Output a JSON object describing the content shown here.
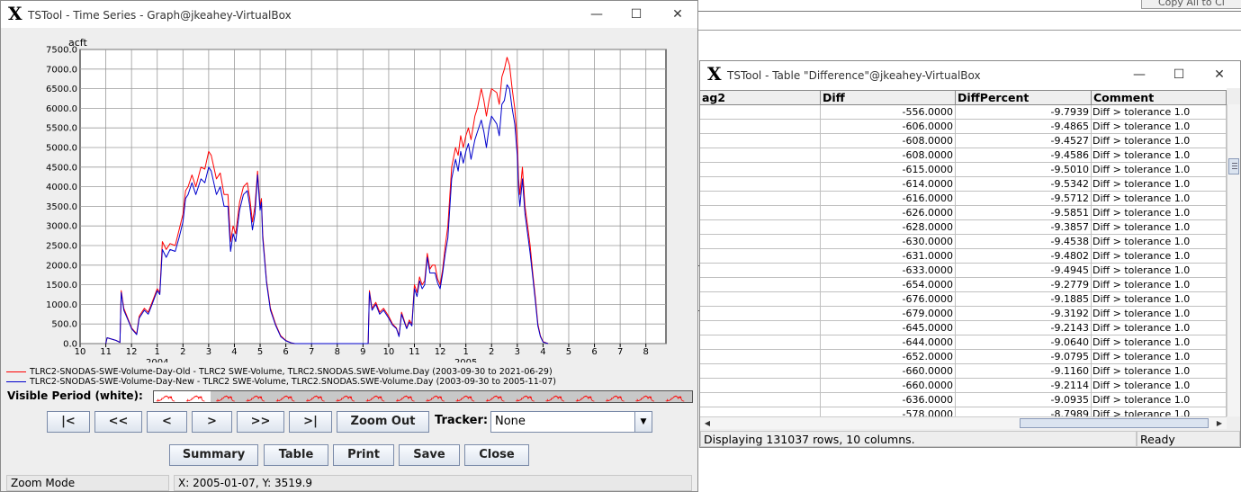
{
  "background": {
    "top_button_label": "Copy All to Cl"
  },
  "graph_window": {
    "title": "TSTool - Time Series - Graph@jkeahey-VirtualBox",
    "minimize_glyph": "—",
    "maximize_glyph": "☐",
    "close_glyph": "✕",
    "legend": [
      {
        "text": "TLRC2-SNODAS-SWE-Volume-Day-Old - TLRC2 SWE-Volume, TLRC2.SNODAS.SWE-Volume.Day (2003-09-30 to 2021-06-29)",
        "color": "#ff0000"
      },
      {
        "text": "TLRC2-SNODAS-SWE-Volume-Day-New - TLRC2 SWE-Volume, TLRC2.SNODAS.SWE-Volume.Day (2003-09-30 to 2005-11-07)",
        "color": "#0000cc"
      }
    ],
    "visible_period_label": "Visible Period (white):",
    "nav_buttons": [
      "|<",
      "<<",
      "<",
      ">",
      ">>",
      ">|"
    ],
    "zoom_out_label": "Zoom Out",
    "tracker_label": "Tracker:",
    "tracker_value": "None",
    "bottom_buttons": [
      "Summary",
      "Table",
      "Print",
      "Save",
      "Close"
    ],
    "status_mode": "Zoom Mode",
    "status_coords": "X:  2005-01-07,  Y:  3519.9"
  },
  "chart_data": {
    "type": "line",
    "ylabel": "acft",
    "ylim": [
      0,
      7500
    ],
    "y_ticks": [
      "0.0",
      "500.0",
      "1000.0",
      "1500.0",
      "2000.0",
      "2500.0",
      "3000.0",
      "3500.0",
      "4000.0",
      "4500.0",
      "5000.0",
      "5500.0",
      "6000.0",
      "6500.0",
      "7000.0",
      "7500.0"
    ],
    "x_tick_labels": [
      "10",
      "11",
      "12",
      "1",
      "2",
      "3",
      "4",
      "5",
      "6",
      "7",
      "8",
      "9",
      "10",
      "11",
      "12",
      "1",
      "2",
      "3",
      "4",
      "5",
      "6",
      "7",
      "8"
    ],
    "x_year_labels": [
      {
        "label": "2004",
        "at_month_index": 3
      },
      {
        "label": "2005",
        "at_month_index": 15
      }
    ],
    "x_unit": "month index from 2003-10 (0 = Oct 2003)",
    "grid": true,
    "series": [
      {
        "name": "TLRC2-SNODAS-SWE-Volume-Day-Old",
        "color": "#ff0000",
        "points": [
          [
            1.0,
            0
          ],
          [
            1.05,
            150
          ],
          [
            1.4,
            80
          ],
          [
            1.55,
            30
          ],
          [
            1.6,
            1350
          ],
          [
            1.7,
            900
          ],
          [
            1.85,
            650
          ],
          [
            2.0,
            400
          ],
          [
            2.2,
            250
          ],
          [
            2.3,
            700
          ],
          [
            2.5,
            900
          ],
          [
            2.65,
            800
          ],
          [
            2.8,
            1050
          ],
          [
            3.0,
            1400
          ],
          [
            3.1,
            1300
          ],
          [
            3.2,
            2600
          ],
          [
            3.35,
            2400
          ],
          [
            3.5,
            2550
          ],
          [
            3.7,
            2500
          ],
          [
            3.85,
            2900
          ],
          [
            4.0,
            3300
          ],
          [
            4.1,
            3900
          ],
          [
            4.2,
            4000
          ],
          [
            4.35,
            4300
          ],
          [
            4.5,
            4000
          ],
          [
            4.7,
            4500
          ],
          [
            4.85,
            4450
          ],
          [
            5.0,
            4900
          ],
          [
            5.1,
            4800
          ],
          [
            5.3,
            4200
          ],
          [
            5.45,
            4350
          ],
          [
            5.6,
            3800
          ],
          [
            5.75,
            3800
          ],
          [
            5.85,
            2600
          ],
          [
            5.95,
            3000
          ],
          [
            6.05,
            2800
          ],
          [
            6.2,
            3600
          ],
          [
            6.35,
            4000
          ],
          [
            6.5,
            4100
          ],
          [
            6.6,
            3700
          ],
          [
            6.7,
            3100
          ],
          [
            6.8,
            3500
          ],
          [
            6.9,
            4400
          ],
          [
            7.0,
            3500
          ],
          [
            7.05,
            3700
          ],
          [
            7.1,
            2800
          ],
          [
            7.25,
            1600
          ],
          [
            7.4,
            900
          ],
          [
            7.6,
            500
          ],
          [
            7.8,
            200
          ],
          [
            8.0,
            80
          ],
          [
            8.2,
            20
          ],
          [
            8.35,
            0
          ],
          [
            11.2,
            0
          ],
          [
            11.25,
            1350
          ],
          [
            11.35,
            900
          ],
          [
            11.5,
            1050
          ],
          [
            11.65,
            800
          ],
          [
            11.8,
            900
          ],
          [
            12.0,
            700
          ],
          [
            12.15,
            500
          ],
          [
            12.3,
            400
          ],
          [
            12.4,
            200
          ],
          [
            12.5,
            800
          ],
          [
            12.7,
            400
          ],
          [
            12.8,
            600
          ],
          [
            12.9,
            500
          ],
          [
            13.0,
            1500
          ],
          [
            13.1,
            1300
          ],
          [
            13.2,
            1700
          ],
          [
            13.3,
            1500
          ],
          [
            13.4,
            1600
          ],
          [
            13.5,
            2300
          ],
          [
            13.6,
            1900
          ],
          [
            13.7,
            2000
          ],
          [
            13.8,
            2000
          ],
          [
            13.9,
            1650
          ],
          [
            14.0,
            1500
          ],
          [
            14.1,
            1900
          ],
          [
            14.2,
            2500
          ],
          [
            14.3,
            3000
          ],
          [
            14.45,
            4500
          ],
          [
            14.6,
            5000
          ],
          [
            14.7,
            4800
          ],
          [
            14.8,
            5300
          ],
          [
            14.9,
            5000
          ],
          [
            15.0,
            5300
          ],
          [
            15.1,
            5500
          ],
          [
            15.2,
            5200
          ],
          [
            15.35,
            5800
          ],
          [
            15.45,
            6000
          ],
          [
            15.6,
            6500
          ],
          [
            15.7,
            6200
          ],
          [
            15.8,
            5800
          ],
          [
            15.9,
            6200
          ],
          [
            16.0,
            6500
          ],
          [
            16.2,
            6400
          ],
          [
            16.3,
            6100
          ],
          [
            16.4,
            6800
          ],
          [
            16.5,
            7000
          ],
          [
            16.6,
            7300
          ],
          [
            16.7,
            7100
          ],
          [
            16.8,
            6500
          ],
          [
            16.9,
            6000
          ],
          [
            17.0,
            5200
          ],
          [
            17.05,
            4200
          ],
          [
            17.1,
            3800
          ],
          [
            17.2,
            4500
          ],
          [
            17.3,
            3500
          ],
          [
            17.4,
            3000
          ],
          [
            17.5,
            2500
          ],
          [
            17.6,
            1800
          ],
          [
            17.7,
            1200
          ],
          [
            17.8,
            500
          ],
          [
            17.9,
            200
          ],
          [
            18.0,
            50
          ],
          [
            18.2,
            0
          ]
        ]
      },
      {
        "name": "TLRC2-SNODAS-SWE-Volume-Day-New",
        "color": "#0000cc",
        "points": [
          [
            1.0,
            0
          ],
          [
            1.05,
            150
          ],
          [
            1.4,
            80
          ],
          [
            1.55,
            30
          ],
          [
            1.6,
            1300
          ],
          [
            1.7,
            850
          ],
          [
            1.85,
            620
          ],
          [
            2.0,
            380
          ],
          [
            2.2,
            230
          ],
          [
            2.3,
            650
          ],
          [
            2.5,
            850
          ],
          [
            2.65,
            750
          ],
          [
            2.8,
            1000
          ],
          [
            3.0,
            1350
          ],
          [
            3.1,
            1250
          ],
          [
            3.2,
            2400
          ],
          [
            3.35,
            2200
          ],
          [
            3.5,
            2400
          ],
          [
            3.7,
            2350
          ],
          [
            3.85,
            2700
          ],
          [
            4.0,
            3100
          ],
          [
            4.1,
            3700
          ],
          [
            4.2,
            3800
          ],
          [
            4.35,
            4100
          ],
          [
            4.5,
            3800
          ],
          [
            4.7,
            4200
          ],
          [
            4.85,
            4100
          ],
          [
            5.0,
            4500
          ],
          [
            5.1,
            4400
          ],
          [
            5.3,
            3800
          ],
          [
            5.45,
            4000
          ],
          [
            5.6,
            3500
          ],
          [
            5.75,
            3500
          ],
          [
            5.85,
            2350
          ],
          [
            5.95,
            2800
          ],
          [
            6.05,
            2600
          ],
          [
            6.2,
            3400
          ],
          [
            6.35,
            3800
          ],
          [
            6.5,
            3900
          ],
          [
            6.6,
            3500
          ],
          [
            6.7,
            2900
          ],
          [
            6.8,
            3300
          ],
          [
            6.9,
            4300
          ],
          [
            7.0,
            3400
          ],
          [
            7.05,
            3600
          ],
          [
            7.1,
            2700
          ],
          [
            7.25,
            1550
          ],
          [
            7.4,
            850
          ],
          [
            7.6,
            470
          ],
          [
            7.8,
            180
          ],
          [
            8.0,
            70
          ],
          [
            8.2,
            20
          ],
          [
            8.35,
            0
          ],
          [
            11.2,
            0
          ],
          [
            11.25,
            1300
          ],
          [
            11.35,
            850
          ],
          [
            11.5,
            1000
          ],
          [
            11.65,
            750
          ],
          [
            11.8,
            850
          ],
          [
            12.0,
            650
          ],
          [
            12.15,
            470
          ],
          [
            12.3,
            380
          ],
          [
            12.4,
            180
          ],
          [
            12.5,
            750
          ],
          [
            12.7,
            380
          ],
          [
            12.8,
            550
          ],
          [
            12.9,
            450
          ],
          [
            13.0,
            1400
          ],
          [
            13.1,
            1200
          ],
          [
            13.2,
            1600
          ],
          [
            13.3,
            1400
          ],
          [
            13.4,
            1500
          ],
          [
            13.5,
            2200
          ],
          [
            13.6,
            1800
          ],
          [
            13.7,
            1800
          ],
          [
            13.8,
            1800
          ],
          [
            13.9,
            1550
          ],
          [
            14.0,
            1400
          ],
          [
            14.1,
            1800
          ],
          [
            14.2,
            2300
          ],
          [
            14.3,
            2700
          ],
          [
            14.45,
            4200
          ],
          [
            14.6,
            4700
          ],
          [
            14.7,
            4400
          ],
          [
            14.8,
            4900
          ],
          [
            14.9,
            4600
          ],
          [
            15.0,
            4900
          ],
          [
            15.1,
            5100
          ],
          [
            15.2,
            4700
          ],
          [
            15.35,
            5200
          ],
          [
            15.45,
            5400
          ],
          [
            15.6,
            5700
          ],
          [
            15.7,
            5400
          ],
          [
            15.8,
            5000
          ],
          [
            15.9,
            5500
          ],
          [
            16.0,
            5800
          ],
          [
            16.2,
            5600
          ],
          [
            16.3,
            5300
          ],
          [
            16.4,
            6100
          ],
          [
            16.5,
            6200
          ],
          [
            16.6,
            6600
          ],
          [
            16.7,
            6500
          ],
          [
            16.8,
            6000
          ],
          [
            16.9,
            5600
          ],
          [
            17.0,
            4800
          ],
          [
            17.05,
            3900
          ],
          [
            17.1,
            3500
          ],
          [
            17.2,
            4200
          ],
          [
            17.3,
            3300
          ],
          [
            17.4,
            2800
          ],
          [
            17.5,
            2300
          ],
          [
            17.6,
            1700
          ],
          [
            17.7,
            1100
          ],
          [
            17.8,
            450
          ],
          [
            17.9,
            180
          ],
          [
            18.0,
            40
          ],
          [
            18.2,
            0
          ]
        ]
      }
    ]
  },
  "table_window": {
    "title": "TSTool - Table \"Difference\"@jkeahey-VirtualBox",
    "minimize_glyph": "—",
    "maximize_glyph": "☐",
    "close_glyph": "✕",
    "columns": [
      "ag2",
      "Diff",
      "DiffPercent",
      "Comment"
    ],
    "rows": [
      [
        "",
        "-556.0000",
        "-9.7939",
        "Diff > tolerance 1.0"
      ],
      [
        "",
        "-606.0000",
        "-9.4865",
        "Diff > tolerance 1.0"
      ],
      [
        "",
        "-608.0000",
        "-9.4527",
        "Diff > tolerance 1.0"
      ],
      [
        "",
        "-608.0000",
        "-9.4586",
        "Diff > tolerance 1.0"
      ],
      [
        "",
        "-615.0000",
        "-9.5010",
        "Diff > tolerance 1.0"
      ],
      [
        "",
        "-614.0000",
        "-9.5342",
        "Diff > tolerance 1.0"
      ],
      [
        "",
        "-616.0000",
        "-9.5712",
        "Diff > tolerance 1.0"
      ],
      [
        "",
        "-626.0000",
        "-9.5851",
        "Diff > tolerance 1.0"
      ],
      [
        "",
        "-628.0000",
        "-9.3857",
        "Diff > tolerance 1.0"
      ],
      [
        "",
        "-630.0000",
        "-9.4538",
        "Diff > tolerance 1.0"
      ],
      [
        "",
        "-631.0000",
        "-9.4802",
        "Diff > tolerance 1.0"
      ],
      [
        "",
        "-633.0000",
        "-9.4945",
        "Diff > tolerance 1.0"
      ],
      [
        "",
        "-654.0000",
        "-9.2779",
        "Diff > tolerance 1.0"
      ],
      [
        "",
        "-676.0000",
        "-9.1885",
        "Diff > tolerance 1.0"
      ],
      [
        "",
        "-679.0000",
        "-9.3192",
        "Diff > tolerance 1.0"
      ],
      [
        "",
        "-645.0000",
        "-9.2143",
        "Diff > tolerance 1.0"
      ],
      [
        "",
        "-644.0000",
        "-9.0640",
        "Diff > tolerance 1.0"
      ],
      [
        "",
        "-652.0000",
        "-9.0795",
        "Diff > tolerance 1.0"
      ],
      [
        "",
        "-660.0000",
        "-9.1160",
        "Diff > tolerance 1.0"
      ],
      [
        "",
        "-660.0000",
        "-9.2114",
        "Diff > tolerance 1.0"
      ],
      [
        "",
        "-636.0000",
        "-9.0935",
        "Diff > tolerance 1.0"
      ],
      [
        "",
        "-578.0000",
        "-8.7989",
        "Diff > tolerance 1.0"
      ]
    ],
    "status_rows": "Displaying 131037 rows, 10 columns.",
    "status_state": "Ready"
  }
}
